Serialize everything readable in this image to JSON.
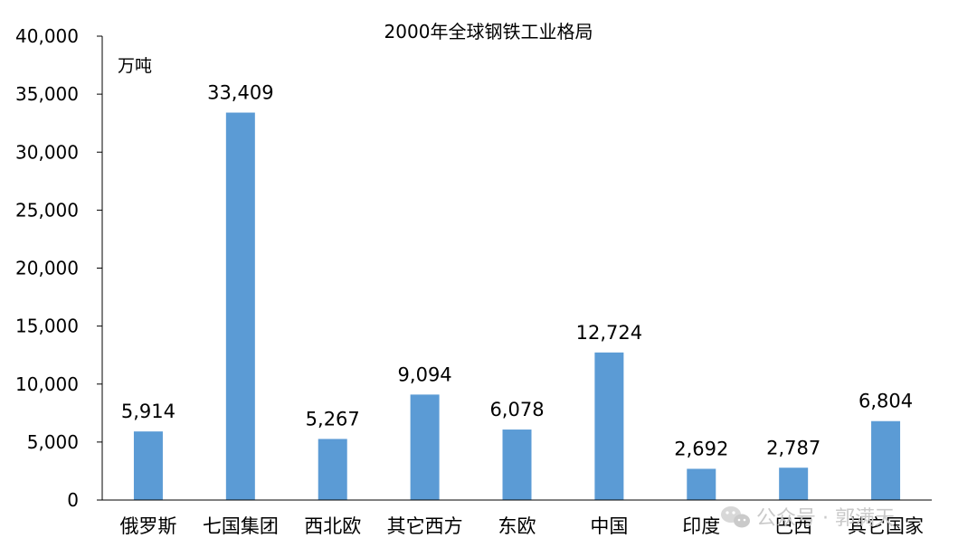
{
  "chart_data": {
    "type": "bar",
    "title": "2000年全球钢铁工业格局",
    "unit_label": "万吨",
    "xlabel": "",
    "ylabel": "",
    "ylim": [
      0,
      40000
    ],
    "y_ticks": [
      0,
      5000,
      10000,
      15000,
      20000,
      25000,
      30000,
      35000,
      40000
    ],
    "y_tick_labels": [
      "0",
      "5,000",
      "10,000",
      "15,000",
      "20,000",
      "25,000",
      "30,000",
      "35,000",
      "40,000"
    ],
    "grid": false,
    "legend": "none",
    "bar_color": "#5b9bd5",
    "categories": [
      "俄罗斯",
      "七国集团",
      "西北欧",
      "其它西方",
      "东欧",
      "中国",
      "印度",
      "巴西",
      "其它国家"
    ],
    "values": [
      5914,
      33409,
      5267,
      9094,
      6078,
      12724,
      2692,
      2787,
      6804
    ],
    "value_labels": [
      "5,914",
      "33,409",
      "5,267",
      "9,094",
      "6,078",
      "12,724",
      "2,692",
      "2,787",
      "6,804"
    ]
  },
  "watermark": {
    "text": "公众号 · 郭满天",
    "icon": "wechat-icon"
  }
}
